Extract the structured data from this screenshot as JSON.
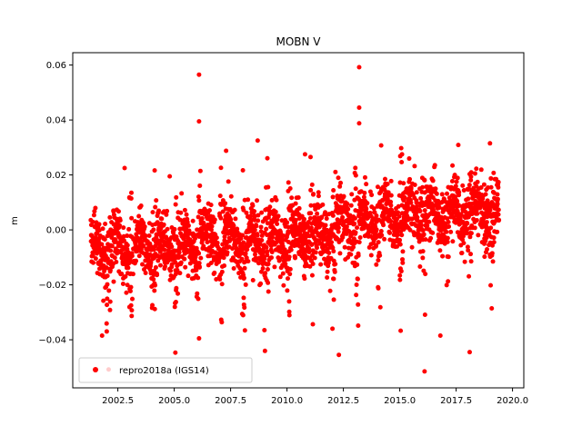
{
  "chart_data": {
    "type": "scatter",
    "title": "MOBN V",
    "xlabel": "",
    "ylabel": "m",
    "xlim": [
      2000.5,
      2020.5
    ],
    "ylim": [
      -0.0575,
      0.0645
    ],
    "xticks": [
      2002.5,
      2005.0,
      2007.5,
      2010.0,
      2012.5,
      2015.0,
      2017.5,
      2020.0
    ],
    "xtick_labels": [
      "2002.5",
      "2005.0",
      "2007.5",
      "2010.0",
      "2012.5",
      "2015.0",
      "2017.5",
      "2020.0"
    ],
    "yticks": [
      -0.04,
      -0.02,
      0.0,
      0.02,
      0.04,
      0.06
    ],
    "ytick_labels": [
      "−0.04",
      "−0.02",
      "0.00",
      "0.02",
      "0.04",
      "0.06"
    ],
    "grid": false,
    "legend_position": "lower-left",
    "series": [
      {
        "name": "repro2018a (IGS14)",
        "color": "#ff0000",
        "marker": "circle",
        "x_range": [
          2001.3,
          2019.4
        ],
        "highlights": [
          {
            "x": 2006.1,
            "y": 0.0565
          },
          {
            "x": 2006.1,
            "y": 0.0395
          },
          {
            "x": 2013.2,
            "y": 0.0592
          },
          {
            "x": 2013.2,
            "y": 0.0445
          },
          {
            "x": 2013.2,
            "y": 0.0388
          },
          {
            "x": 2016.1,
            "y": -0.0515
          },
          {
            "x": 2012.3,
            "y": -0.0455
          },
          {
            "x": 2018.1,
            "y": -0.0445
          },
          {
            "x": 2006.1,
            "y": -0.0395
          },
          {
            "x": 2001.8,
            "y": -0.0385
          },
          {
            "x": 2016.8,
            "y": -0.0385
          },
          {
            "x": 2002.8,
            "y": 0.0225
          },
          {
            "x": 2004.8,
            "y": 0.0195
          },
          {
            "x": 2008.7,
            "y": 0.0325
          },
          {
            "x": 2019.0,
            "y": 0.0315
          },
          {
            "x": 2015.1,
            "y": 0.0275
          },
          {
            "x": 2010.8,
            "y": 0.0275
          },
          {
            "x": 2007.3,
            "y": 0.0288
          },
          {
            "x": 2009.0,
            "y": -0.0365
          },
          {
            "x": 2010.1,
            "y": -0.0298
          }
        ]
      }
    ]
  }
}
